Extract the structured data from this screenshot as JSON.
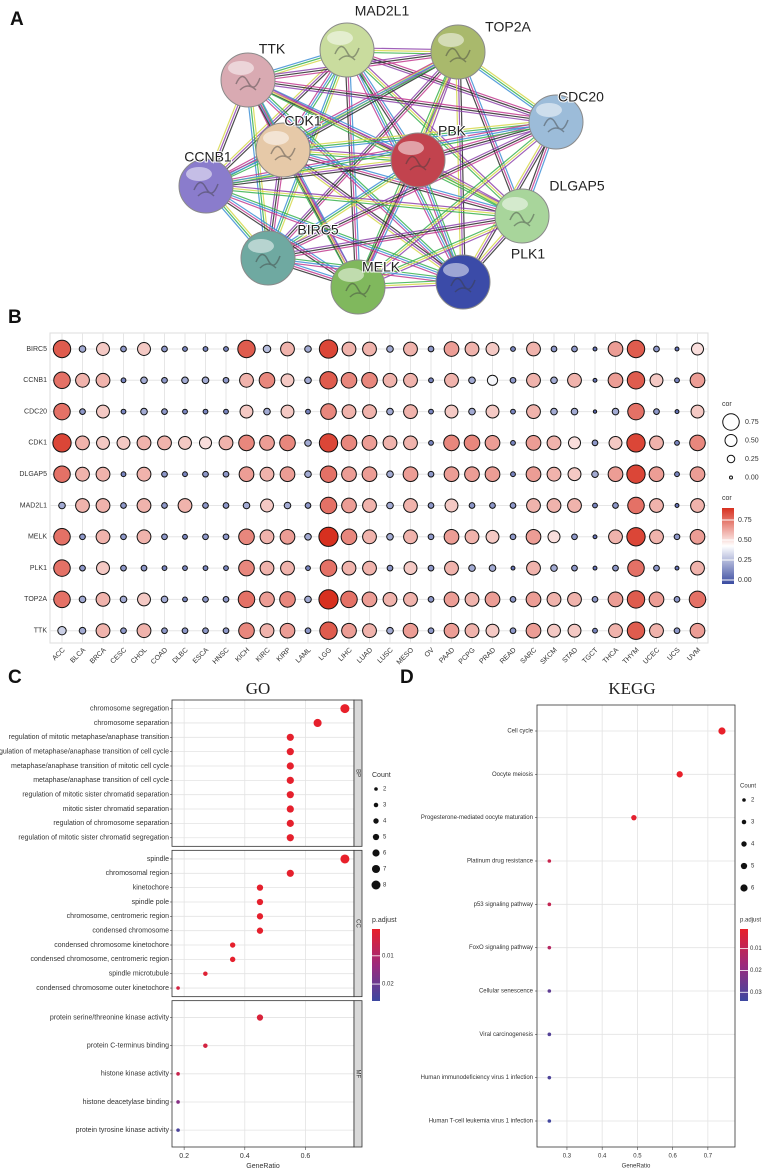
{
  "chart_data": [
    {
      "type": "network",
      "panel": "A",
      "nodes": [
        "MAD2L1",
        "TOP2A",
        "TTK",
        "CDK1",
        "PBK",
        "CDC20",
        "CCNB1",
        "DLGAP5",
        "BIRC5",
        "PLK1",
        "MELK"
      ]
    },
    {
      "type": "dotmatrix",
      "panel": "B",
      "rows": [
        "BIRC5",
        "CCNB1",
        "CDC20",
        "CDK1",
        "DLGAP5",
        "MAD2L1",
        "MELK",
        "PLK1",
        "TOP2A",
        "TTK"
      ],
      "columns": [
        "ACC",
        "BLCA",
        "BRCA",
        "CESC",
        "CHOL",
        "COAD",
        "DLBC",
        "ESCA",
        "HNSC",
        "KICH",
        "KIRC",
        "KIRP",
        "LAML",
        "LGG",
        "LIHC",
        "LUAD",
        "LUSC",
        "MESO",
        "OV",
        "PAAD",
        "PCPG",
        "PRAD",
        "READ",
        "SARC",
        "SKCM",
        "STAD",
        "TGCT",
        "THCA",
        "THYM",
        "UCEC",
        "UCS",
        "UVM"
      ],
      "values": [
        [
          0.8,
          0.2,
          0.55,
          0.15,
          0.55,
          0.15,
          0.1,
          0.1,
          0.1,
          0.8,
          0.25,
          0.6,
          0.2,
          0.85,
          0.6,
          0.6,
          0.2,
          0.6,
          0.15,
          0.65,
          0.6,
          0.55,
          0.1,
          0.6,
          0.15,
          0.15,
          0.05,
          0.65,
          0.8,
          0.15,
          0.05,
          0.5
        ],
        [
          0.75,
          0.6,
          0.6,
          0.1,
          0.2,
          0.15,
          0.2,
          0.2,
          0.15,
          0.6,
          0.7,
          0.55,
          0.2,
          0.8,
          0.7,
          0.7,
          0.6,
          0.6,
          0.1,
          0.6,
          0.2,
          0.4,
          0.15,
          0.6,
          0.2,
          0.6,
          0.05,
          0.65,
          0.8,
          0.55,
          0.1,
          0.65
        ],
        [
          0.75,
          0.15,
          0.55,
          0.1,
          0.2,
          0.15,
          0.1,
          0.1,
          0.1,
          0.55,
          0.2,
          0.55,
          0.1,
          0.7,
          0.6,
          0.6,
          0.2,
          0.6,
          0.1,
          0.55,
          0.2,
          0.55,
          0.1,
          0.6,
          0.2,
          0.2,
          0.02,
          0.2,
          0.75,
          0.15,
          0.05,
          0.55
        ],
        [
          0.85,
          0.6,
          0.55,
          0.55,
          0.6,
          0.6,
          0.55,
          0.5,
          0.6,
          0.7,
          0.65,
          0.7,
          0.2,
          0.85,
          0.7,
          0.65,
          0.6,
          0.6,
          0.1,
          0.7,
          0.7,
          0.65,
          0.1,
          0.65,
          0.6,
          0.5,
          0.15,
          0.55,
          0.85,
          0.6,
          0.1,
          0.7
        ],
        [
          0.75,
          0.6,
          0.6,
          0.1,
          0.6,
          0.15,
          0.1,
          0.15,
          0.15,
          0.65,
          0.6,
          0.65,
          0.2,
          0.75,
          0.65,
          0.65,
          0.2,
          0.65,
          0.15,
          0.65,
          0.65,
          0.65,
          0.1,
          0.65,
          0.6,
          0.55,
          0.2,
          0.65,
          0.85,
          0.65,
          0.1,
          0.65
        ],
        [
          0.2,
          0.6,
          0.6,
          0.15,
          0.6,
          0.15,
          0.6,
          0.15,
          0.15,
          0.2,
          0.55,
          0.2,
          0.15,
          0.75,
          0.65,
          0.6,
          0.2,
          0.6,
          0.15,
          0.55,
          0.15,
          0.15,
          0.15,
          0.6,
          0.6,
          0.6,
          0.1,
          0.15,
          0.75,
          0.6,
          0.05,
          0.6
        ],
        [
          0.75,
          0.15,
          0.6,
          0.15,
          0.6,
          0.15,
          0.1,
          0.15,
          0.15,
          0.7,
          0.6,
          0.65,
          0.2,
          0.9,
          0.7,
          0.6,
          0.2,
          0.6,
          0.15,
          0.65,
          0.6,
          0.55,
          0.15,
          0.65,
          0.5,
          0.15,
          0.05,
          0.6,
          0.85,
          0.6,
          0.15,
          0.65
        ],
        [
          0.75,
          0.15,
          0.55,
          0.15,
          0.15,
          0.1,
          0.1,
          0.1,
          0.1,
          0.7,
          0.6,
          0.6,
          0.1,
          0.75,
          0.6,
          0.6,
          0.15,
          0.55,
          0.15,
          0.6,
          0.2,
          0.2,
          0.05,
          0.6,
          0.2,
          0.15,
          0.05,
          0.15,
          0.75,
          0.15,
          0.05,
          0.6
        ],
        [
          0.75,
          0.2,
          0.6,
          0.2,
          0.55,
          0.2,
          0.1,
          0.15,
          0.15,
          0.75,
          0.65,
          0.7,
          0.2,
          0.9,
          0.75,
          0.65,
          0.6,
          0.6,
          0.15,
          0.65,
          0.6,
          0.65,
          0.15,
          0.65,
          0.6,
          0.6,
          0.15,
          0.65,
          0.8,
          0.65,
          0.15,
          0.75
        ],
        [
          0.3,
          0.2,
          0.6,
          0.15,
          0.6,
          0.15,
          0.15,
          0.15,
          0.15,
          0.7,
          0.6,
          0.65,
          0.15,
          0.8,
          0.65,
          0.6,
          0.2,
          0.65,
          0.15,
          0.65,
          0.6,
          0.55,
          0.15,
          0.65,
          0.55,
          0.55,
          0.1,
          0.6,
          0.8,
          0.6,
          0.15,
          0.65
        ]
      ],
      "size_legend": {
        "title": "cor",
        "ticks": [
          0.75,
          {
            "value": 0.5,
            "label": "0.50"
          },
          0.25,
          {
            "value": 0,
            "label": "0.00"
          }
        ]
      },
      "color_legend": {
        "title": "cor",
        "ticks": [
          0.75,
          {
            "value": 0.5,
            "label": "0.50"
          },
          0.25,
          {
            "value": 0,
            "label": "0.00"
          }
        ],
        "lim": [
          -0.05,
          0.9
        ],
        "colors": [
          "#3a4ba0",
          "#ffffff",
          "#d7301f"
        ]
      }
    },
    {
      "type": "dotplot",
      "panel": "C",
      "title": "GO",
      "xlabel": "GeneRatio",
      "facets": [
        {
          "label": "BP",
          "categories": [
            "chromosome segregation",
            "chromosome separation",
            "regulation of mitotic metaphase/anaphase transition",
            "regulation of metaphase/anaphase transition of cell cycle",
            "metaphase/anaphase transition of mitotic cell cycle",
            "metaphase/anaphase transition of cell cycle",
            "regulation of mitotic sister chromatid separation",
            "mitotic sister chromatid separation",
            "regulation of chromosome separation",
            "regulation of mitotic sister chromatid segregation"
          ],
          "values": [
            0.73,
            0.64,
            0.55,
            0.55,
            0.55,
            0.55,
            0.55,
            0.55,
            0.55,
            0.55
          ],
          "count": [
            8,
            7,
            6,
            6,
            6,
            6,
            6,
            6,
            6,
            6
          ],
          "p_adjust": [
            0.0005,
            0.0008,
            0.001,
            0.001,
            0.001,
            0.001,
            0.001,
            0.001,
            0.001,
            0.001
          ]
        },
        {
          "label": "CC",
          "categories": [
            "spindle",
            "chromosomal region",
            "kinetochore",
            "spindle pole",
            "chromosome, centromeric region",
            "condensed chromosome",
            "condensed chromosome kinetochore",
            "condensed chromosome, centromeric region",
            "spindle microtubule",
            "condensed chromosome outer kinetochore"
          ],
          "values": [
            0.73,
            0.55,
            0.45,
            0.45,
            0.45,
            0.45,
            0.36,
            0.36,
            0.27,
            0.18
          ],
          "count": [
            8,
            6,
            5,
            5,
            5,
            5,
            4,
            4,
            3,
            2
          ],
          "p_adjust": [
            0.0005,
            0.001,
            0.001,
            0.001,
            0.001,
            0.001,
            0.001,
            0.001,
            0.002,
            0.004
          ]
        },
        {
          "label": "MF",
          "categories": [
            "protein serine/threonine kinase activity",
            "protein C-terminus binding",
            "histone kinase activity",
            "histone deacetylase binding",
            "protein tyrosine kinase activity"
          ],
          "values": [
            0.45,
            0.27,
            0.18,
            0.18,
            0.18
          ],
          "count": [
            5,
            3,
            2,
            2,
            2
          ],
          "p_adjust": [
            0.003,
            0.004,
            0.006,
            0.016,
            0.024
          ]
        }
      ],
      "xlim": [
        0.16,
        0.76
      ],
      "xticks": [
        0.2,
        0.4,
        0.6
      ],
      "count_legend": {
        "title": "Count",
        "values": [
          2,
          3,
          4,
          5,
          6,
          7,
          8
        ]
      },
      "padjust_legend": {
        "title": "p.adjust",
        "lim": [
          0.0005,
          0.026
        ],
        "ticks": [
          0.01,
          0.02
        ],
        "colors": [
          "#e8202a",
          "#9c2a7c",
          "#3c48a0"
        ]
      }
    },
    {
      "type": "dotplot",
      "panel": "D",
      "title": "KEGG",
      "xlabel": "GeneRatio",
      "categories": [
        "Cell cycle",
        "Oocyte meiosis",
        "Progesterone-mediated oocyte maturation",
        "Platinum drug resistance",
        "p53 signaling pathway",
        "FoxO signaling pathway",
        "Cellular senescence",
        "Viral carcinogenesis",
        "Human immunodeficiency virus 1 infection",
        "Human T-cell leukemia virus 1 infection"
      ],
      "values": [
        0.74,
        0.62,
        0.49,
        0.25,
        0.25,
        0.25,
        0.25,
        0.25,
        0.25,
        0.25
      ],
      "count": [
        6,
        5,
        4,
        2,
        2,
        2,
        2,
        2,
        2,
        2
      ],
      "p_adjust": [
        0.001,
        0.001,
        0.002,
        0.008,
        0.009,
        0.012,
        0.028,
        0.03,
        0.031,
        0.033
      ],
      "xlim": [
        0.215,
        0.777
      ],
      "xticks": [
        0.3,
        0.4,
        0.5,
        0.6,
        0.7
      ],
      "count_legend": {
        "title": "Count",
        "values": [
          2,
          3,
          4,
          5,
          6
        ]
      },
      "padjust_legend": {
        "title": "p.adjust",
        "lim": [
          0.001,
          0.034
        ],
        "ticks": [
          0.01,
          0.02,
          0.03
        ],
        "colors": [
          "#e8202a",
          "#9c2a7c",
          "#3c48a0"
        ]
      }
    }
  ]
}
